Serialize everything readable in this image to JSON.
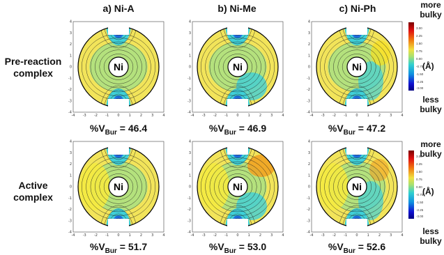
{
  "columns": [
    {
      "title": "a) Ni-A"
    },
    {
      "title": "b) Ni-Me"
    },
    {
      "title": "c) Ni-Ph"
    }
  ],
  "rows": [
    {
      "label_line1": "Pre-reaction",
      "label_line2": "complex",
      "vbur": [
        "46.4",
        "46.9",
        "47.2"
      ]
    },
    {
      "label_line1": "Active",
      "label_line2": "complex",
      "vbur": [
        "51.7",
        "53.0",
        "52.6"
      ]
    }
  ],
  "vbur_prefix": "%V",
  "vbur_sub": "Bur",
  "vbur_eq": " = ",
  "center_label": "Ni",
  "axis_ticks": [
    "-4",
    "-3",
    "-2",
    "-1",
    "0",
    "1",
    "2",
    "3",
    "4"
  ],
  "colorbar": {
    "top_line1": "more",
    "top_line2": "bulky",
    "bottom_line1": "less",
    "bottom_line2": "bulky",
    "unit": "(Å)",
    "ticks": [
      "3.00",
      "2.25",
      "1.50",
      "0.75",
      "0.00",
      "-0.75",
      "-1.50",
      "-2.25",
      "-3.00"
    ]
  },
  "colors": {
    "yellow": "#f2e45a",
    "green": "#9fe08a",
    "cyan": "#3fd0d8",
    "blue": "#1f6fe0",
    "deepblue": "#1a1ad0",
    "orange": "#f0a020"
  }
}
